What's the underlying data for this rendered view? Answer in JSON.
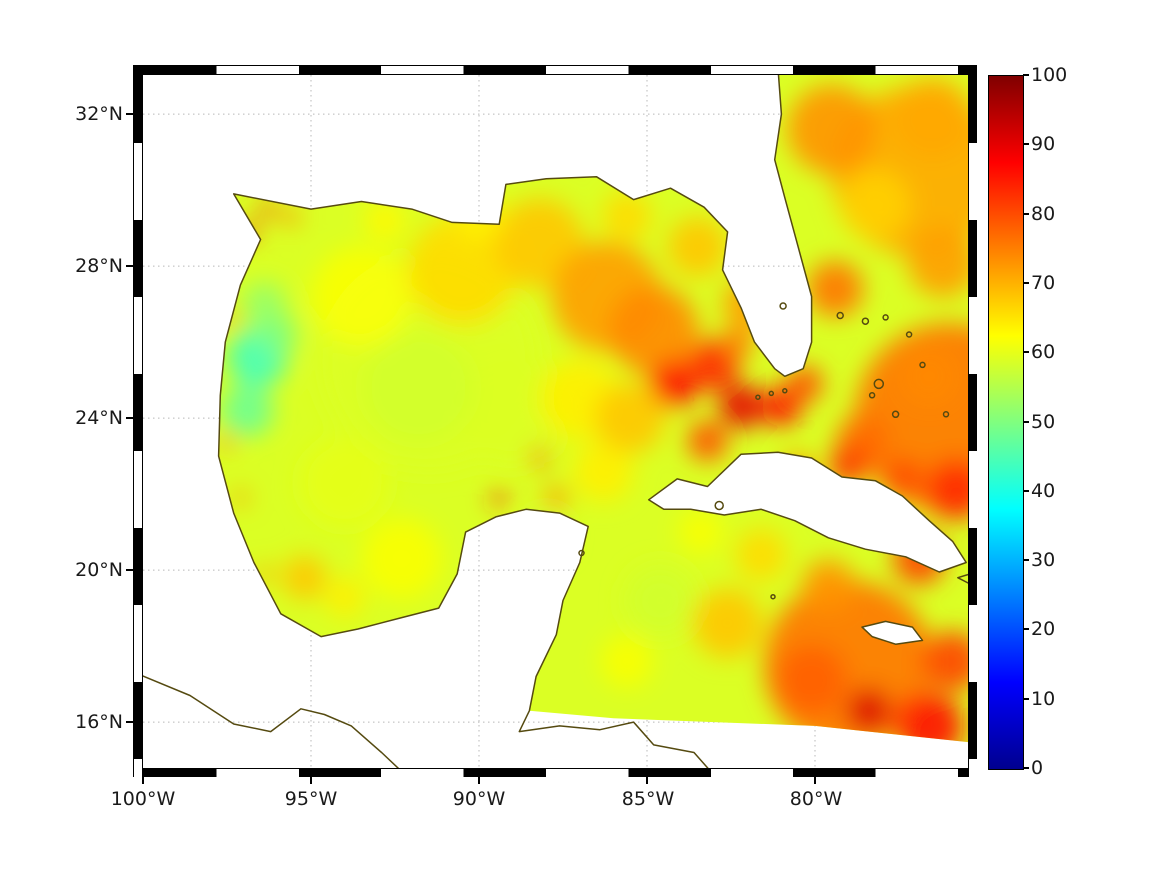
{
  "figure": {
    "background": "#ffffff"
  },
  "axes": {
    "x_tick_labels": [
      "100°W",
      "95°W",
      "90°W",
      "85°W",
      "80°W"
    ],
    "y_tick_labels": [
      "32°N",
      "28°N",
      "24°N",
      "20°N",
      "16°N"
    ],
    "x_tick_lons": [
      100,
      95,
      90,
      85,
      80
    ],
    "y_tick_lats": [
      32,
      28,
      24,
      20,
      16
    ],
    "extent": {
      "lon_west_degW": 100,
      "lon_east_degW": 75.4,
      "lat_south": 14.8,
      "lat_north": 33.0
    },
    "grid_color": "#b8b8b8",
    "tick_color": "#000000",
    "label_color": "#1a1a1a"
  },
  "colorbar": {
    "tick_labels": [
      "100",
      "90",
      "80",
      "70",
      "60",
      "50",
      "40",
      "30",
      "20",
      "10",
      "0"
    ],
    "min": 0,
    "max": 100,
    "stops": [
      {
        "t": 0.0,
        "color": "#00008F"
      },
      {
        "t": 0.125,
        "color": "#0000FF"
      },
      {
        "t": 0.375,
        "color": "#00FFFF"
      },
      {
        "t": 0.625,
        "color": "#FFFF00"
      },
      {
        "t": 0.875,
        "color": "#FF0000"
      },
      {
        "t": 1.0,
        "color": "#800000"
      }
    ]
  },
  "chart_data": {
    "type": "heatmap",
    "title": "",
    "region": "Gulf of Mexico / NW Caribbean / W Atlantic",
    "extent": {
      "lon_degW": [
        100,
        75.4
      ],
      "lat_degN": [
        14.8,
        33.0
      ]
    },
    "value_range": [
      0,
      100
    ],
    "colormap": "jet",
    "x_ticks": [
      "100°W",
      "95°W",
      "90°W",
      "85°W",
      "80°W"
    ],
    "y_ticks": [
      "32°N",
      "28°N",
      "24°N",
      "20°N",
      "16°N"
    ],
    "colorbar_ticks": [
      0,
      10,
      20,
      30,
      40,
      50,
      60,
      70,
      80,
      90,
      100
    ],
    "approx_field": "Gulf interior ~55-65; cool patch ~45 off NE Mexico; red maxima ~85-90 in Florida Straits, NE of Cuba and SW Caribbean; Atlantic side ~70-80"
  },
  "map": {
    "coast_color": "#554a10",
    "base_value": 59,
    "water_polygon": [
      [
        97.3,
        29.9
      ],
      [
        95.0,
        29.5
      ],
      [
        93.5,
        29.7
      ],
      [
        92.0,
        29.5
      ],
      [
        90.8,
        29.15
      ],
      [
        89.4,
        29.1
      ],
      [
        89.2,
        30.15
      ],
      [
        88.0,
        30.3
      ],
      [
        86.5,
        30.35
      ],
      [
        85.4,
        29.75
      ],
      [
        84.3,
        30.05
      ],
      [
        83.3,
        29.55
      ],
      [
        82.6,
        28.9
      ],
      [
        82.75,
        27.9
      ],
      [
        82.2,
        26.9
      ],
      [
        81.8,
        26.0
      ],
      [
        81.2,
        25.3
      ],
      [
        80.9,
        25.1
      ],
      [
        80.35,
        25.3
      ],
      [
        80.1,
        26.0
      ],
      [
        80.1,
        27.2
      ],
      [
        80.5,
        28.5
      ],
      [
        80.9,
        29.8
      ],
      [
        81.2,
        30.8
      ],
      [
        81.0,
        32.0
      ],
      [
        81.1,
        33.2
      ],
      [
        75.2,
        33.2
      ],
      [
        75.2,
        15.45
      ],
      [
        80.0,
        15.9
      ],
      [
        83.0,
        16.0
      ],
      [
        86.0,
        16.1
      ],
      [
        88.5,
        16.3
      ],
      [
        88.3,
        17.2
      ],
      [
        87.7,
        18.3
      ],
      [
        87.5,
        19.2
      ],
      [
        87.0,
        20.2
      ],
      [
        86.75,
        21.15
      ],
      [
        87.6,
        21.5
      ],
      [
        88.6,
        21.6
      ],
      [
        89.5,
        21.4
      ],
      [
        90.4,
        21.0
      ],
      [
        90.65,
        19.9
      ],
      [
        91.2,
        19.0
      ],
      [
        92.3,
        18.75
      ],
      [
        93.6,
        18.45
      ],
      [
        94.7,
        18.25
      ],
      [
        95.9,
        18.85
      ],
      [
        96.7,
        20.2
      ],
      [
        97.3,
        21.5
      ],
      [
        97.75,
        23.0
      ],
      [
        97.7,
        24.6
      ],
      [
        97.55,
        26.0
      ],
      [
        97.1,
        27.5
      ],
      [
        96.5,
        28.7
      ]
    ],
    "samples": [
      [
        91.5,
        25.5,
        59,
        110
      ],
      [
        77.0,
        30.5,
        71,
        85
      ],
      [
        76.0,
        24.0,
        76,
        95
      ],
      [
        79.0,
        17.5,
        76,
        85
      ],
      [
        96.6,
        25.6,
        44,
        30
      ],
      [
        96.9,
        24.2,
        48,
        26
      ],
      [
        96.4,
        27.0,
        52,
        22
      ],
      [
        96.0,
        26.2,
        50,
        20
      ],
      [
        93.5,
        27.2,
        62,
        50
      ],
      [
        90.5,
        27.9,
        66,
        55
      ],
      [
        88.2,
        28.6,
        68,
        45
      ],
      [
        86.2,
        27.2,
        72,
        55
      ],
      [
        84.8,
        26.3,
        74,
        45
      ],
      [
        89.0,
        24.2,
        59,
        55
      ],
      [
        91.8,
        24.8,
        58,
        55
      ],
      [
        94.0,
        22.3,
        60,
        45
      ],
      [
        92.3,
        20.3,
        62,
        40
      ],
      [
        95.2,
        19.8,
        68,
        22
      ],
      [
        94.0,
        19.3,
        64,
        20
      ],
      [
        89.4,
        21.9,
        83,
        8
      ],
      [
        88.2,
        22.95,
        79,
        9
      ],
      [
        87.7,
        21.9,
        72,
        12
      ],
      [
        88.0,
        20.9,
        57,
        22
      ],
      [
        86.3,
        22.6,
        64,
        30
      ],
      [
        87.0,
        24.5,
        64,
        40
      ],
      [
        85.5,
        24.0,
        68,
        35
      ],
      [
        84.2,
        24.9,
        87,
        24
      ],
      [
        83.0,
        25.4,
        84,
        26
      ],
      [
        82.2,
        24.3,
        90,
        22
      ],
      [
        81.0,
        24.3,
        86,
        20
      ],
      [
        83.2,
        23.4,
        80,
        20
      ],
      [
        80.3,
        24.9,
        80,
        18
      ],
      [
        82.3,
        26.0,
        75,
        16
      ],
      [
        96.85,
        28.9,
        80,
        9
      ],
      [
        96.3,
        29.5,
        82,
        8
      ],
      [
        95.6,
        29.3,
        73,
        9
      ],
      [
        97.4,
        26.6,
        73,
        8
      ],
      [
        97.5,
        23.4,
        74,
        8
      ],
      [
        97.1,
        21.9,
        72,
        8
      ],
      [
        96.4,
        19.9,
        70,
        9
      ],
      [
        90.0,
        29.3,
        64,
        25
      ],
      [
        92.8,
        29.2,
        63,
        20
      ],
      [
        85.6,
        29.3,
        66,
        25
      ],
      [
        83.5,
        28.5,
        68,
        30
      ],
      [
        82.0,
        27.0,
        72,
        25
      ],
      [
        79.5,
        31.6,
        73,
        45
      ],
      [
        76.5,
        31.9,
        71,
        40
      ],
      [
        78.2,
        29.6,
        67,
        35
      ],
      [
        76.2,
        28.1,
        72,
        35
      ],
      [
        79.4,
        27.4,
        76,
        28
      ],
      [
        76.6,
        25.1,
        74,
        30
      ],
      [
        78.6,
        23.4,
        77,
        26
      ],
      [
        75.8,
        22.1,
        83,
        30
      ],
      [
        76.9,
        20.3,
        81,
        26
      ],
      [
        80.5,
        22.6,
        72,
        18
      ],
      [
        79.0,
        22.75,
        82,
        20
      ],
      [
        77.4,
        22.4,
        80,
        20
      ],
      [
        84.6,
        19.2,
        58,
        35
      ],
      [
        85.6,
        17.6,
        62,
        26
      ],
      [
        82.6,
        18.6,
        68,
        35
      ],
      [
        80.1,
        17.1,
        78,
        35
      ],
      [
        78.4,
        16.3,
        91,
        22
      ],
      [
        76.6,
        15.9,
        86,
        34
      ],
      [
        75.9,
        17.6,
        81,
        30
      ],
      [
        79.6,
        19.6,
        73,
        26
      ],
      [
        81.6,
        20.4,
        66,
        26
      ],
      [
        83.4,
        21.0,
        62,
        22
      ]
    ],
    "islands": {
      "cuba": [
        [
          84.95,
          21.85
        ],
        [
          84.1,
          22.4
        ],
        [
          83.2,
          22.2
        ],
        [
          82.2,
          23.05
        ],
        [
          81.1,
          23.1
        ],
        [
          80.1,
          22.95
        ],
        [
          79.2,
          22.45
        ],
        [
          78.2,
          22.35
        ],
        [
          77.4,
          21.95
        ],
        [
          76.6,
          21.3
        ],
        [
          75.9,
          20.75
        ],
        [
          75.5,
          20.2
        ],
        [
          76.3,
          19.95
        ],
        [
          77.3,
          20.35
        ],
        [
          78.5,
          20.55
        ],
        [
          79.6,
          20.85
        ],
        [
          80.6,
          21.3
        ],
        [
          81.6,
          21.6
        ],
        [
          82.7,
          21.45
        ],
        [
          83.7,
          21.6
        ],
        [
          84.5,
          21.6
        ]
      ],
      "jamaica": [
        [
          78.6,
          18.5
        ],
        [
          77.9,
          18.65
        ],
        [
          77.1,
          18.5
        ],
        [
          76.8,
          18.15
        ],
        [
          77.6,
          18.05
        ],
        [
          78.3,
          18.25
        ]
      ]
    },
    "coastlines": {
      "mainland": [
        [
          81.1,
          33.2
        ],
        [
          81.0,
          32.0
        ],
        [
          81.2,
          30.8
        ],
        [
          80.9,
          29.8
        ],
        [
          80.5,
          28.5
        ],
        [
          80.1,
          27.2
        ],
        [
          80.1,
          26.0
        ],
        [
          80.35,
          25.3
        ],
        [
          80.9,
          25.1
        ],
        [
          81.2,
          25.3
        ],
        [
          81.8,
          26.0
        ],
        [
          82.2,
          26.9
        ],
        [
          82.75,
          27.9
        ],
        [
          82.6,
          28.9
        ],
        [
          83.3,
          29.55
        ],
        [
          84.3,
          30.05
        ],
        [
          85.4,
          29.75
        ],
        [
          86.5,
          30.35
        ],
        [
          88.0,
          30.3
        ],
        [
          89.2,
          30.15
        ],
        [
          89.4,
          29.1
        ],
        [
          90.8,
          29.15
        ],
        [
          92.0,
          29.5
        ],
        [
          93.5,
          29.7
        ],
        [
          95.0,
          29.5
        ],
        [
          97.3,
          29.9
        ],
        [
          96.5,
          28.7
        ],
        [
          97.1,
          27.5
        ],
        [
          97.55,
          26.0
        ],
        [
          97.7,
          24.6
        ],
        [
          97.75,
          23.0
        ],
        [
          97.3,
          21.5
        ],
        [
          96.7,
          20.2
        ],
        [
          95.9,
          18.85
        ],
        [
          94.7,
          18.25
        ],
        [
          93.6,
          18.45
        ],
        [
          92.3,
          18.75
        ],
        [
          91.2,
          19.0
        ],
        [
          90.65,
          19.9
        ],
        [
          90.4,
          21.0
        ],
        [
          89.5,
          21.4
        ],
        [
          88.6,
          21.6
        ],
        [
          87.6,
          21.5
        ],
        [
          86.75,
          21.15
        ],
        [
          87.0,
          20.2
        ],
        [
          87.5,
          19.2
        ],
        [
          87.7,
          18.3
        ],
        [
          88.3,
          17.2
        ],
        [
          88.5,
          16.3
        ],
        [
          88.8,
          15.75
        ],
        [
          87.6,
          15.9
        ],
        [
          86.4,
          15.8
        ],
        [
          85.4,
          16.0
        ],
        [
          84.8,
          15.4
        ],
        [
          83.6,
          15.2
        ],
        [
          83.1,
          14.7
        ]
      ],
      "pacific": [
        [
          100.1,
          17.25
        ],
        [
          98.6,
          16.7
        ],
        [
          97.3,
          15.95
        ],
        [
          96.2,
          15.75
        ],
        [
          95.3,
          16.35
        ],
        [
          94.6,
          16.2
        ],
        [
          93.8,
          15.9
        ],
        [
          92.9,
          15.2
        ],
        [
          92.3,
          14.7
        ]
      ],
      "haiti_tip": [
        [
          75.2,
          19.95
        ],
        [
          75.75,
          19.8
        ],
        [
          75.2,
          19.55
        ]
      ]
    },
    "specks": [
      [
        79.25,
        26.7,
        3
      ],
      [
        78.5,
        26.55,
        3
      ],
      [
        77.9,
        26.65,
        2.5
      ],
      [
        77.2,
        26.2,
        2.5
      ],
      [
        78.1,
        24.9,
        4.5
      ],
      [
        77.6,
        24.1,
        3
      ],
      [
        78.3,
        24.6,
        2.5
      ],
      [
        76.8,
        25.4,
        2.5
      ],
      [
        76.1,
        24.1,
        2.5
      ],
      [
        86.95,
        20.45,
        2.5
      ],
      [
        80.95,
        26.95,
        3
      ],
      [
        82.85,
        21.7,
        4
      ],
      [
        81.25,
        19.3,
        2
      ],
      [
        81.7,
        24.55,
        2
      ],
      [
        81.3,
        24.65,
        2
      ],
      [
        80.9,
        24.72,
        2
      ]
    ]
  }
}
